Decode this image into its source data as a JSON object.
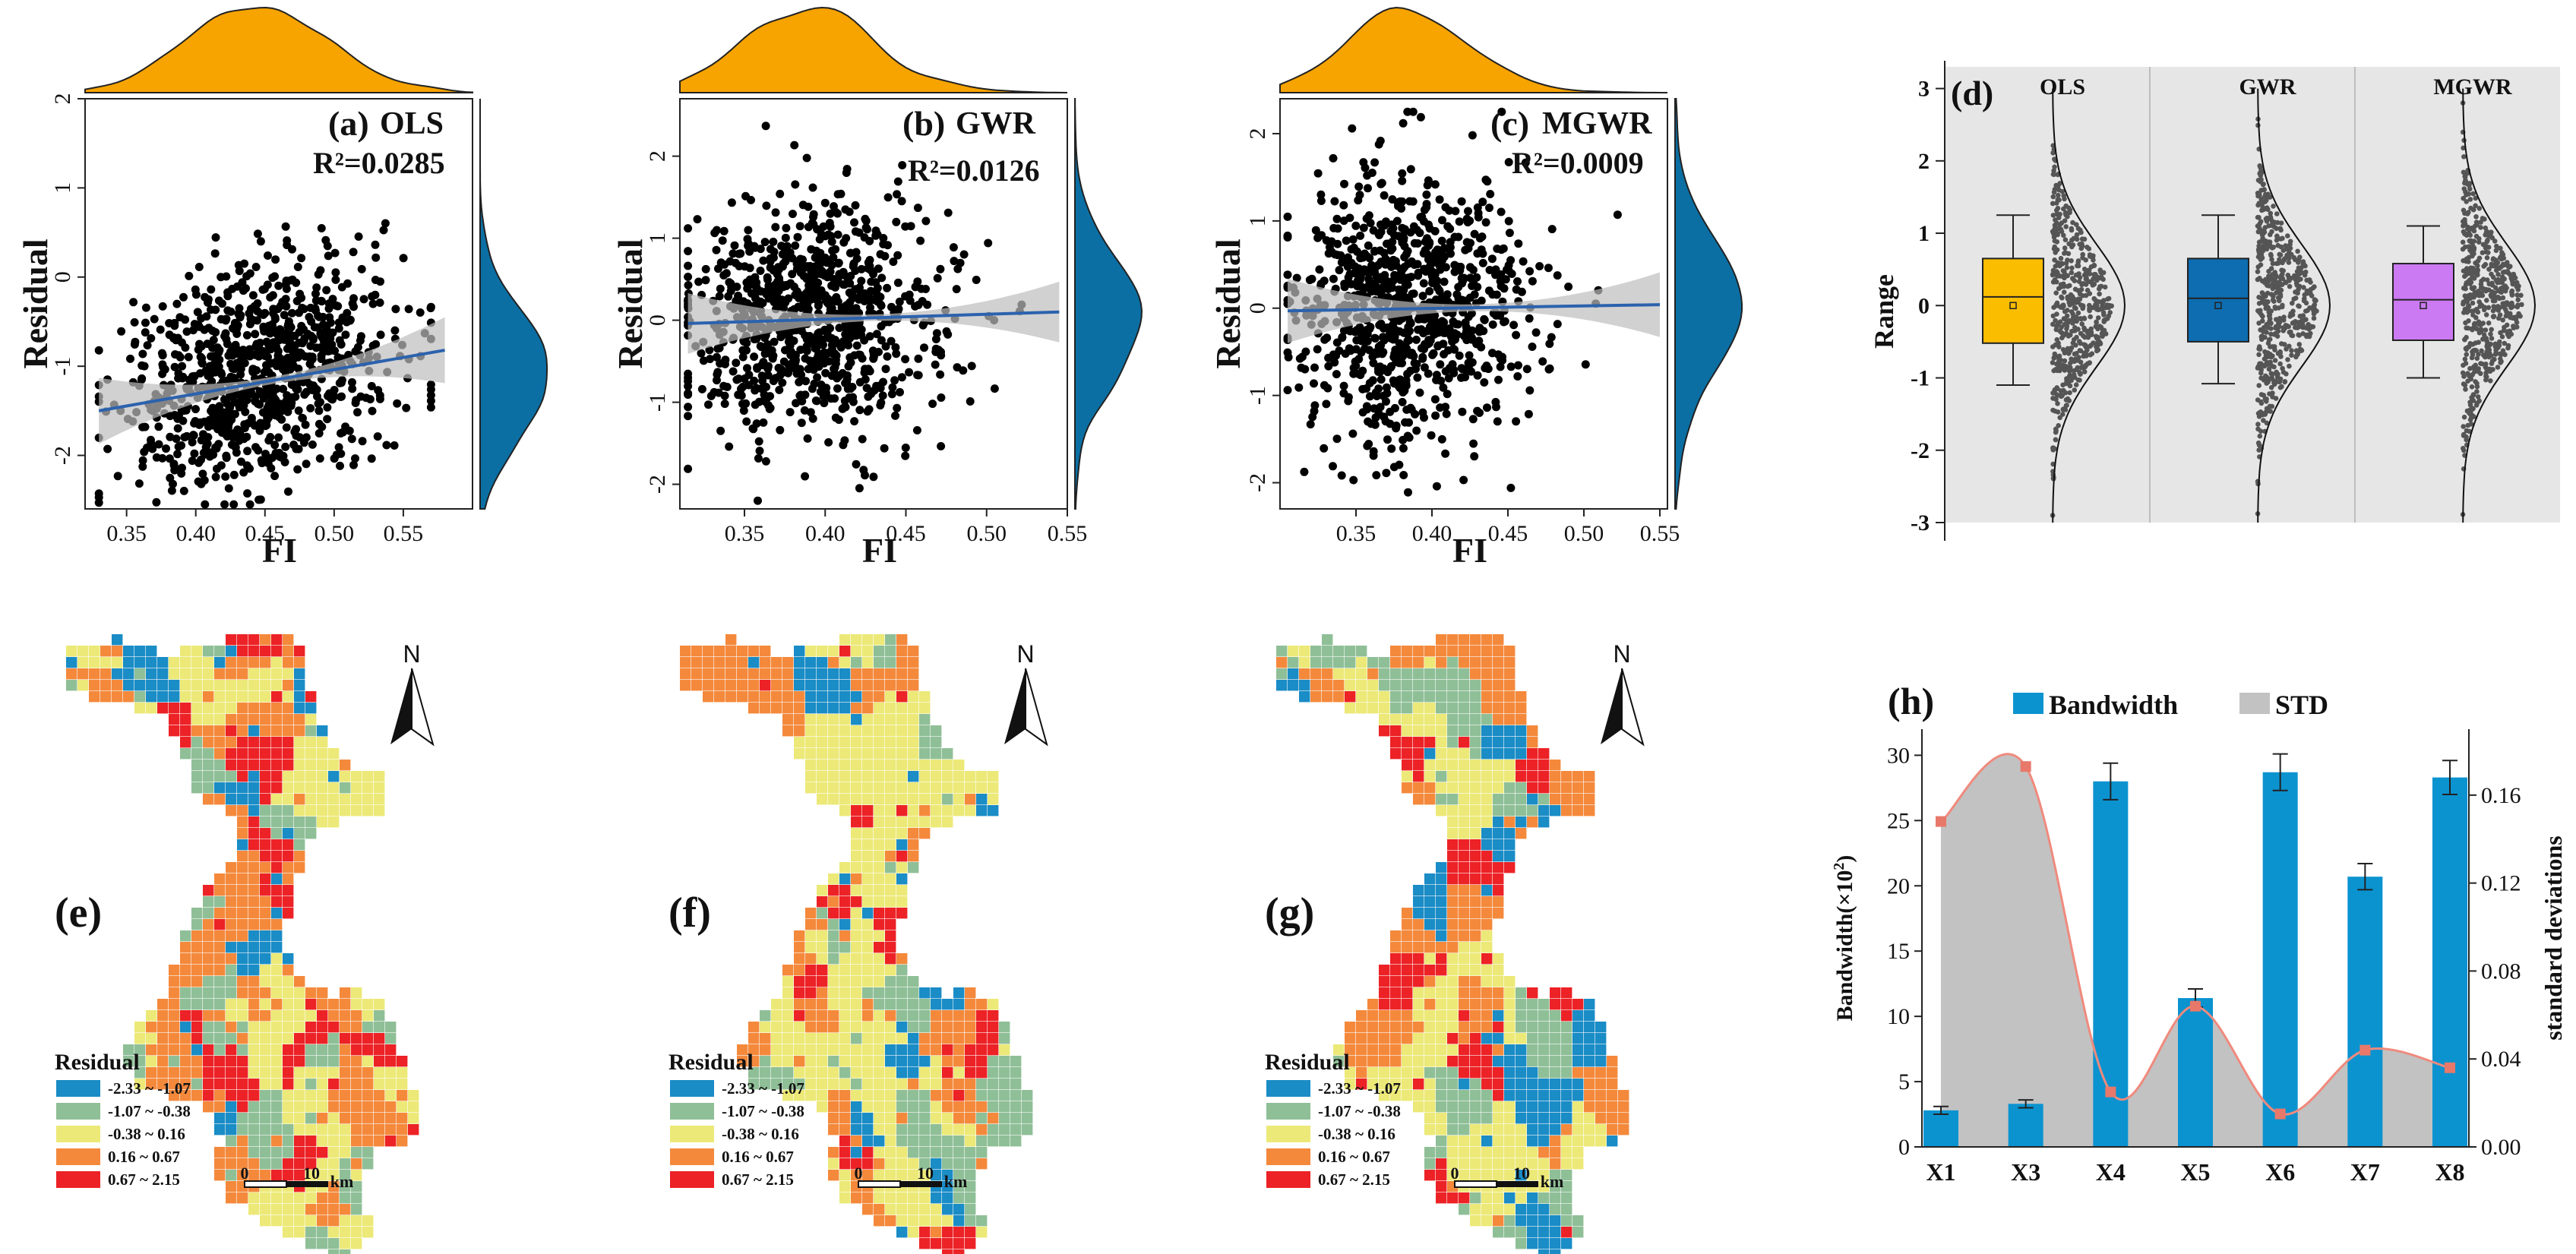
{
  "chart_data": [
    {
      "id": "a",
      "type": "scatter",
      "panel_label": "(a)",
      "model": "OLS",
      "r2_text": "R²=0.0285",
      "xlabel": "FI",
      "ylabel": "Residual",
      "xlim": [
        0.32,
        0.6
      ],
      "ylim": [
        -2.6,
        2.0
      ],
      "xticks": [
        0.35,
        0.4,
        0.45,
        0.5,
        0.55
      ],
      "xtick_labels": [
        "0.35",
        "0.40",
        "0.45",
        "0.50",
        "0.55"
      ],
      "yticks": [
        -2,
        -1,
        0,
        1,
        2
      ],
      "ytick_labels": [
        "-2",
        "-1",
        "0",
        "1",
        "2"
      ],
      "trend": {
        "x": [
          0.33,
          0.58
        ],
        "y": [
          -1.5,
          -0.82
        ]
      },
      "cloud": {
        "n": 900,
        "x_mean": 0.44,
        "x_sd": 0.045,
        "x_range": [
          0.33,
          0.57
        ],
        "y_mean": -1.1,
        "y_sd": 0.6,
        "slope": 3.0,
        "y_range": [
          -2.55,
          1.85
        ]
      },
      "top_density_color": "#f7a300",
      "side_density_color": "#0b6fa4",
      "line_color": "#2b62ad"
    },
    {
      "id": "b",
      "type": "scatter",
      "panel_label": "(b)",
      "model": "GWR",
      "r2_text": "R²=0.0126",
      "xlabel": "FI",
      "ylabel": "Residual",
      "xlim": [
        0.31,
        0.55
      ],
      "ylim": [
        -2.3,
        2.7
      ],
      "xticks": [
        0.35,
        0.4,
        0.45,
        0.5,
        0.55
      ],
      "xtick_labels": [
        "0.35",
        "0.40",
        "0.45",
        "0.50",
        "0.55"
      ],
      "yticks": [
        -2,
        -1,
        0,
        1,
        2
      ],
      "ytick_labels": [
        "-2",
        "-1",
        "0",
        "1",
        "2"
      ],
      "trend": {
        "x": [
          0.315,
          0.545
        ],
        "y": [
          -0.04,
          0.1
        ]
      },
      "cloud": {
        "n": 900,
        "x_mean": 0.385,
        "x_sd": 0.035,
        "x_range": [
          0.315,
          0.54
        ],
        "y_mean": 0.0,
        "y_sd": 0.7,
        "slope": 0.6,
        "y_range": [
          -2.2,
          2.55
        ]
      },
      "top_density_color": "#f7a300",
      "side_density_color": "#0b6fa4",
      "line_color": "#2b62ad"
    },
    {
      "id": "c",
      "type": "scatter",
      "panel_label": "(c)",
      "model": "MGWR",
      "r2_text": "R²=0.0009",
      "xlabel": "FI",
      "ylabel": "Residual",
      "xlim": [
        0.3,
        0.555
      ],
      "ylim": [
        -2.3,
        2.4
      ],
      "xticks": [
        0.35,
        0.4,
        0.45,
        0.5,
        0.55
      ],
      "xtick_labels": [
        "0.35",
        "0.40",
        "0.45",
        "0.50",
        "0.55"
      ],
      "yticks": [
        -2,
        -1,
        0,
        1,
        2
      ],
      "ytick_labels": [
        "-2",
        "-1",
        "0",
        "1",
        "2"
      ],
      "trend": {
        "x": [
          0.305,
          0.55
        ],
        "y": [
          -0.03,
          0.04
        ]
      },
      "cloud": {
        "n": 900,
        "x_mean": 0.38,
        "x_sd": 0.035,
        "x_range": [
          0.305,
          0.55
        ],
        "y_mean": 0.0,
        "y_sd": 0.75,
        "slope": 0.25,
        "y_range": [
          -2.2,
          2.25
        ]
      },
      "top_density_color": "#f7a300",
      "side_density_color": "#0b6fa4",
      "line_color": "#2b62ad"
    },
    {
      "id": "d",
      "type": "box",
      "panel_label": "(d)",
      "ylabel": "Range",
      "ylim": [
        -3,
        3.3
      ],
      "yticks": [
        -3,
        -2,
        -1,
        0,
        1,
        2,
        3
      ],
      "ytick_labels": [
        "-3",
        "-2",
        "-1",
        "0",
        "1",
        "2",
        "3"
      ],
      "groups": [
        {
          "name": "OLS",
          "color": "#fbbd00",
          "whisker_low": -1.1,
          "q1": -0.52,
          "median": 0.12,
          "q3": 0.65,
          "whisker_high": 1.25,
          "mean": 0.0
        },
        {
          "name": "GWR",
          "color": "#0d6db0",
          "whisker_low": -1.08,
          "q1": -0.5,
          "median": 0.1,
          "q3": 0.65,
          "whisker_high": 1.25,
          "mean": 0.0
        },
        {
          "name": "MGWR",
          "color": "#cc7af4",
          "whisker_low": -1.0,
          "q1": -0.48,
          "median": 0.08,
          "q3": 0.58,
          "whisker_high": 1.1,
          "mean": 0.0
        }
      ],
      "background": "#e6e6e6"
    },
    {
      "id": "h",
      "type": "bar",
      "panel_label": "(h)",
      "categories": [
        "X1",
        "X3",
        "X4",
        "X5",
        "X6",
        "X7",
        "X8"
      ],
      "series": [
        {
          "name": "Bandwidth",
          "values": [
            2.8,
            3.3,
            28.0,
            11.4,
            28.7,
            20.7,
            28.3
          ],
          "errors": [
            0.3,
            0.3,
            1.4,
            0.7,
            1.4,
            1.0,
            1.3
          ],
          "color": "#0b93d0"
        },
        {
          "name": "STD",
          "values": [
            0.148,
            0.173,
            0.025,
            0.064,
            0.015,
            0.044,
            0.036
          ],
          "color": "#c2c2c2",
          "line_color": "#f08a7d",
          "marker_color": "#e8786a"
        }
      ],
      "ylabel_left_text": "Bandwidth(×10",
      "ylabel_left_sup": "2",
      "ylabel_left_close": ")",
      "ylabel_right": "standard deviations",
      "ylim_left": [
        0,
        32
      ],
      "ylim_right": [
        0,
        0.19
      ],
      "yticks_left": [
        0,
        5,
        10,
        15,
        20,
        25,
        30
      ],
      "ytick_labels_left": [
        "0",
        "5",
        "10",
        "15",
        "20",
        "25",
        "30"
      ],
      "yticks_right": [
        0,
        0.04,
        0.08,
        0.12,
        0.16
      ],
      "ytick_labels_right": [
        "0.00",
        "0.04",
        "0.08",
        "0.12",
        "0.16"
      ],
      "legend_position": "top"
    }
  ],
  "maps": [
    {
      "id": "e",
      "panel_label": "(e)",
      "seed": 11
    },
    {
      "id": "f",
      "panel_label": "(f)",
      "seed": 23
    },
    {
      "id": "g",
      "panel_label": "(g)",
      "seed": 37
    }
  ],
  "map_common": {
    "north_label": "N",
    "legend_title": "Residual",
    "legend": [
      {
        "label": "-2.33 ~ -1.07",
        "color": "#1a8cc6"
      },
      {
        "label": "-1.07 ~ -0.38",
        "color": "#8fbf97"
      },
      {
        "label": "-0.38 ~ 0.16",
        "color": "#ece978"
      },
      {
        "label": "0.16 ~ 0.67",
        "color": "#f4893c"
      },
      {
        "label": "0.67 ~ 2.15",
        "color": "#ec2226"
      }
    ],
    "scale_labels": [
      "0",
      "10",
      "km"
    ],
    "class_shares": [
      0.12,
      0.2,
      0.3,
      0.26,
      0.12
    ]
  }
}
